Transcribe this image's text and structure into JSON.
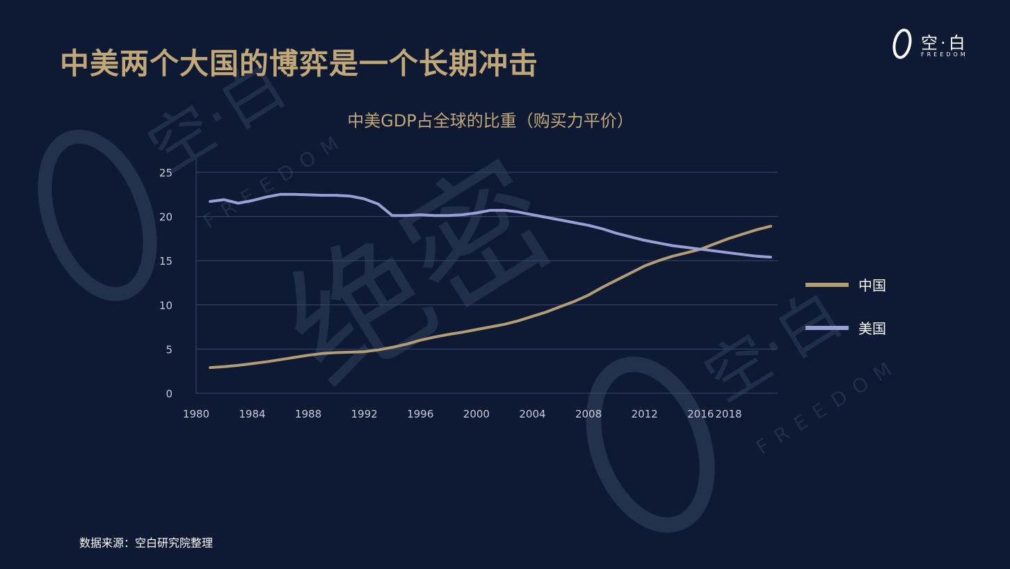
{
  "slide": {
    "title": "中美两个大国的博弈是一个长期冲击",
    "source_note": "数据来源：空白研究院整理"
  },
  "logo": {
    "text": "空·白",
    "subtext": "FREEDOM"
  },
  "watermark": {
    "texts": [
      "空·白",
      "FREEDOM",
      "绝密"
    ]
  },
  "colors": {
    "background": "#0e1a33",
    "title": "#c2a878",
    "china": "#b39d74",
    "usa": "#9a9fd6",
    "grid": "#3a4868",
    "tick": "#c8ccd8",
    "legend_text": "#ffffff"
  },
  "chart_data": {
    "type": "line",
    "title": "中美GDP占全球的比重（购买力平价）",
    "xlabel": "",
    "ylabel": "",
    "xlim": [
      1980,
      2021
    ],
    "ylim": [
      0,
      25
    ],
    "y_ticks": [
      0,
      5,
      10,
      15,
      20,
      25
    ],
    "x_ticks": [
      1980,
      1984,
      1988,
      1992,
      1996,
      2000,
      2004,
      2008,
      2012,
      2016,
      2018
    ],
    "grid": true,
    "legend_position": "right",
    "series": [
      {
        "name": "中国",
        "color": "#b39d74",
        "points": [
          [
            1981,
            2.9
          ],
          [
            1982,
            3.0
          ],
          [
            1983,
            3.15
          ],
          [
            1984,
            3.35
          ],
          [
            1985,
            3.55
          ],
          [
            1986,
            3.8
          ],
          [
            1987,
            4.05
          ],
          [
            1988,
            4.3
          ],
          [
            1989,
            4.5
          ],
          [
            1990,
            4.6
          ],
          [
            1991,
            4.65
          ],
          [
            1992,
            4.7
          ],
          [
            1993,
            4.9
          ],
          [
            1994,
            5.2
          ],
          [
            1995,
            5.55
          ],
          [
            1996,
            6.0
          ],
          [
            1997,
            6.35
          ],
          [
            1998,
            6.65
          ],
          [
            1999,
            6.9
          ],
          [
            2000,
            7.2
          ],
          [
            2001,
            7.5
          ],
          [
            2002,
            7.8
          ],
          [
            2003,
            8.2
          ],
          [
            2004,
            8.7
          ],
          [
            2005,
            9.2
          ],
          [
            2006,
            9.8
          ],
          [
            2007,
            10.4
          ],
          [
            2008,
            11.1
          ],
          [
            2009,
            12.0
          ],
          [
            2010,
            12.8
          ],
          [
            2011,
            13.6
          ],
          [
            2012,
            14.4
          ],
          [
            2013,
            15.0
          ],
          [
            2014,
            15.5
          ],
          [
            2015,
            15.9
          ],
          [
            2016,
            16.3
          ],
          [
            2017,
            16.9
          ],
          [
            2018,
            17.5
          ],
          [
            2019,
            18.0
          ],
          [
            2020,
            18.5
          ],
          [
            2021,
            18.9
          ]
        ]
      },
      {
        "name": "美国",
        "color": "#9a9fd6",
        "points": [
          [
            1981,
            21.7
          ],
          [
            1982,
            21.9
          ],
          [
            1983,
            21.5
          ],
          [
            1984,
            21.8
          ],
          [
            1985,
            22.2
          ],
          [
            1986,
            22.5
          ],
          [
            1987,
            22.5
          ],
          [
            1988,
            22.45
          ],
          [
            1989,
            22.4
          ],
          [
            1990,
            22.4
          ],
          [
            1991,
            22.3
          ],
          [
            1992,
            22.0
          ],
          [
            1993,
            21.4
          ],
          [
            1994,
            20.1
          ],
          [
            1995,
            20.1
          ],
          [
            1996,
            20.2
          ],
          [
            1997,
            20.1
          ],
          [
            1998,
            20.1
          ],
          [
            1999,
            20.2
          ],
          [
            2000,
            20.4
          ],
          [
            2001,
            20.7
          ],
          [
            2002,
            20.7
          ],
          [
            2003,
            20.5
          ],
          [
            2004,
            20.2
          ],
          [
            2005,
            19.9
          ],
          [
            2006,
            19.6
          ],
          [
            2007,
            19.3
          ],
          [
            2008,
            19.0
          ],
          [
            2009,
            18.6
          ],
          [
            2010,
            18.1
          ],
          [
            2011,
            17.7
          ],
          [
            2012,
            17.3
          ],
          [
            2013,
            17.0
          ],
          [
            2014,
            16.7
          ],
          [
            2015,
            16.5
          ],
          [
            2016,
            16.3
          ],
          [
            2017,
            16.1
          ],
          [
            2018,
            15.9
          ],
          [
            2019,
            15.7
          ],
          [
            2020,
            15.5
          ],
          [
            2021,
            15.4
          ]
        ]
      }
    ]
  }
}
